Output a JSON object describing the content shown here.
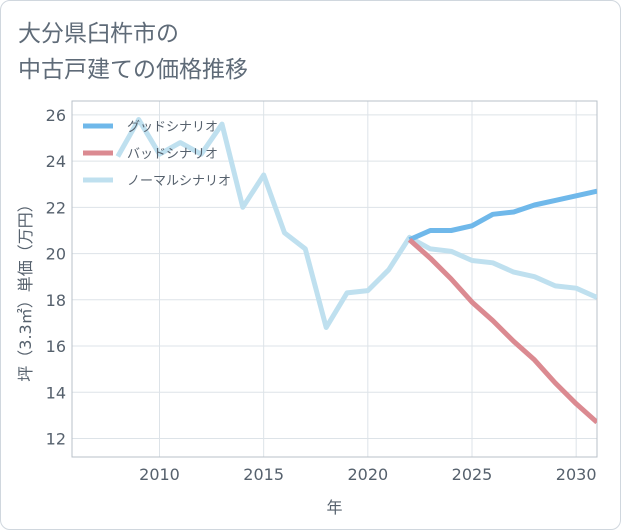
{
  "chart_data": {
    "type": "line",
    "title_lines": [
      "大分県臼杵市の",
      "中古戸建ての価格推移"
    ],
    "xlabel": "年",
    "ylabel": "坪（3.3㎡）単価（万円）",
    "xlim": [
      2005.8,
      2031
    ],
    "ylim": [
      11.2,
      26.6
    ],
    "x_ticks": [
      2010,
      2015,
      2020,
      2025,
      2030
    ],
    "y_ticks": [
      12,
      14,
      16,
      18,
      20,
      22,
      24,
      26
    ],
    "grid": true,
    "legend_position": "top-left",
    "series": [
      {
        "name": "グッドシナリオ",
        "color": "#6fb8ea",
        "x": [
          2022,
          2023,
          2024,
          2025,
          2026,
          2027,
          2028,
          2029,
          2030,
          2031
        ],
        "values": [
          20.6,
          21.0,
          21.0,
          21.2,
          21.7,
          21.8,
          22.1,
          22.3,
          22.5,
          22.7
        ]
      },
      {
        "name": "バッドシナリオ",
        "color": "#db8a91",
        "x": [
          2022,
          2023,
          2024,
          2025,
          2026,
          2027,
          2028,
          2029,
          2030,
          2031
        ],
        "values": [
          20.6,
          19.8,
          18.9,
          17.9,
          17.1,
          16.2,
          15.4,
          14.4,
          13.5,
          12.7
        ]
      },
      {
        "name": "ノーマルシナリオ",
        "color": "#bfe0ef",
        "x": [
          2008,
          2009,
          2010,
          2011,
          2012,
          2013,
          2014,
          2015,
          2016,
          2017,
          2018,
          2019,
          2020,
          2021,
          2022,
          2023,
          2024,
          2025,
          2026,
          2027,
          2028,
          2029,
          2030,
          2031
        ],
        "values": [
          24.2,
          25.8,
          24.3,
          24.8,
          24.3,
          25.6,
          22.0,
          23.4,
          20.9,
          20.2,
          16.8,
          18.3,
          18.4,
          19.3,
          20.7,
          20.2,
          20.1,
          19.7,
          19.6,
          19.2,
          19.0,
          18.6,
          18.5,
          18.1
        ]
      }
    ]
  }
}
